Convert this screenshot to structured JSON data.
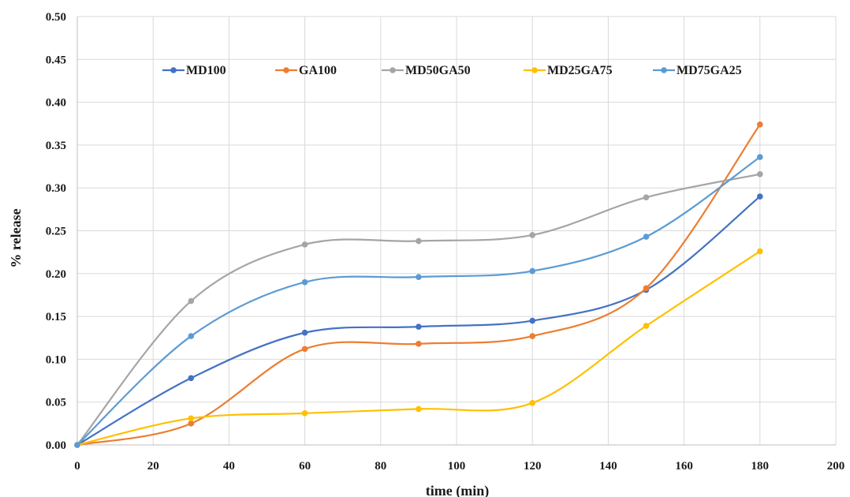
{
  "chart_data": {
    "type": "line",
    "smooth": true,
    "title": "",
    "xlabel": "time (min)",
    "ylabel": "% release",
    "xlim": [
      0,
      200
    ],
    "ylim": [
      0,
      0.5
    ],
    "xticks": [
      0,
      20,
      40,
      60,
      80,
      100,
      120,
      140,
      160,
      180,
      200
    ],
    "yticks": [
      "0.00",
      "0.05",
      "0.10",
      "0.15",
      "0.20",
      "0.25",
      "0.30",
      "0.35",
      "0.40",
      "0.45",
      "0.50"
    ],
    "grid": true,
    "legend_position": "top",
    "x": [
      0,
      30,
      60,
      90,
      120,
      150,
      180
    ],
    "series": [
      {
        "name": "MD100",
        "color": "#4472c4",
        "values": [
          0,
          0.078,
          0.131,
          0.138,
          0.145,
          0.181,
          0.29
        ]
      },
      {
        "name": "GA100",
        "color": "#ed7d31",
        "values": [
          0,
          0.025,
          0.112,
          0.118,
          0.127,
          0.183,
          0.374
        ]
      },
      {
        "name": "MD50GA50",
        "color": "#a5a5a5",
        "values": [
          0,
          0.168,
          0.234,
          0.238,
          0.245,
          0.289,
          0.316
        ]
      },
      {
        "name": "MD25GA75",
        "color": "#ffc000",
        "values": [
          0,
          0.031,
          0.037,
          0.042,
          0.049,
          0.139,
          0.226
        ]
      },
      {
        "name": "MD75GA25",
        "color": "#5b9bd5",
        "values": [
          0,
          0.127,
          0.19,
          0.196,
          0.203,
          0.243,
          0.336
        ]
      }
    ]
  }
}
